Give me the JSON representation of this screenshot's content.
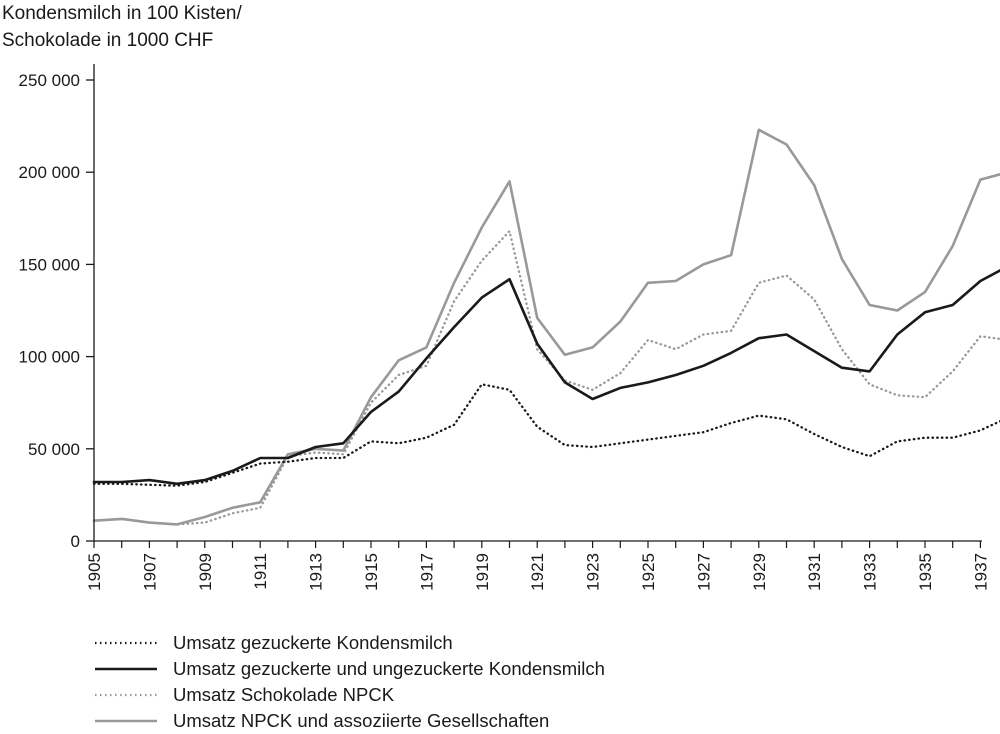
{
  "chart_data": {
    "type": "line",
    "ylabel_lines": [
      "Kondensmilch in 100 Kisten/",
      "Schokolade in 1000 CHF"
    ],
    "xlabel": "",
    "ylim": [
      0,
      250000
    ],
    "xlim": [
      1905,
      1938
    ],
    "y_ticks": [
      {
        "value": 0,
        "label": "0"
      },
      {
        "value": 50000,
        "label": "50 000"
      },
      {
        "value": 100000,
        "label": "100 000"
      },
      {
        "value": 150000,
        "label": "150 000"
      },
      {
        "value": 200000,
        "label": "200 000"
      },
      {
        "value": 250000,
        "label": "250 000"
      }
    ],
    "x_ticks": [
      {
        "value": 1905,
        "label": "1905"
      },
      {
        "value": 1907,
        "label": "1907"
      },
      {
        "value": 1909,
        "label": "1909"
      },
      {
        "value": 1911,
        "label": "1911"
      },
      {
        "value": 1913,
        "label": "1913"
      },
      {
        "value": 1915,
        "label": "1915"
      },
      {
        "value": 1917,
        "label": "1917"
      },
      {
        "value": 1919,
        "label": "1919"
      },
      {
        "value": 1921,
        "label": "1921"
      },
      {
        "value": 1923,
        "label": "1923"
      },
      {
        "value": 1925,
        "label": "1925"
      },
      {
        "value": 1927,
        "label": "1927"
      },
      {
        "value": 1929,
        "label": "1929"
      },
      {
        "value": 1931,
        "label": "1931"
      },
      {
        "value": 1933,
        "label": "1933"
      },
      {
        "value": 1935,
        "label": "1935"
      },
      {
        "value": 1937,
        "label": "1937"
      }
    ],
    "x": [
      1905,
      1906,
      1907,
      1908,
      1909,
      1910,
      1911,
      1912,
      1913,
      1914,
      1915,
      1916,
      1917,
      1918,
      1919,
      1920,
      1921,
      1922,
      1923,
      1924,
      1925,
      1926,
      1927,
      1928,
      1929,
      1930,
      1931,
      1932,
      1933,
      1934,
      1935,
      1936,
      1937,
      1938
    ],
    "series": [
      {
        "name": "Umsatz gezuckerte Kondensmilch",
        "color": "#1a1a1a",
        "style": "dotted",
        "values": [
          31000,
          31000,
          30500,
          30000,
          32000,
          37000,
          42000,
          43000,
          45000,
          45000,
          54000,
          53000,
          56000,
          63000,
          85000,
          82000,
          62000,
          52000,
          51000,
          53000,
          55000,
          57000,
          59000,
          64000,
          68000,
          66000,
          58000,
          51000,
          46000,
          54000,
          56000,
          56000,
          60000,
          67000
        ]
      },
      {
        "name": "Umsatz gezuckerte und ungezuckerte Kondensmilch",
        "color": "#1a1a1a",
        "style": "solid",
        "values": [
          32000,
          32000,
          33000,
          31000,
          33000,
          38000,
          45000,
          45000,
          51000,
          53000,
          70000,
          81000,
          99000,
          116000,
          132000,
          142000,
          107000,
          86000,
          77000,
          83000,
          86000,
          90000,
          95000,
          102000,
          110000,
          112000,
          103000,
          94000,
          92000,
          112000,
          124000,
          128000,
          141000,
          149000
        ]
      },
      {
        "name": "Umsatz Schokolade NPCK",
        "color": "#999999",
        "style": "dotted",
        "values": [
          11000,
          12000,
          10000,
          9000,
          10000,
          15000,
          18000,
          46000,
          48000,
          47000,
          75000,
          90000,
          95000,
          130000,
          152000,
          168000,
          104000,
          87000,
          82000,
          91000,
          109000,
          104000,
          112000,
          114000,
          140000,
          144000,
          131000,
          104000,
          85000,
          79000,
          78000,
          92000,
          111000,
          109000
        ]
      },
      {
        "name": "Umsatz NPCK und assoziierte Gesellschaften",
        "color": "#999999",
        "style": "solid",
        "values": [
          11000,
          12000,
          10000,
          9000,
          13000,
          18000,
          21000,
          47000,
          50000,
          49000,
          78000,
          98000,
          105000,
          140000,
          170000,
          195000,
          121000,
          101000,
          105000,
          119000,
          140000,
          141000,
          150000,
          155000,
          223000,
          215000,
          193000,
          153000,
          128000,
          125000,
          135000,
          160000,
          196000,
          200000
        ]
      }
    ]
  }
}
